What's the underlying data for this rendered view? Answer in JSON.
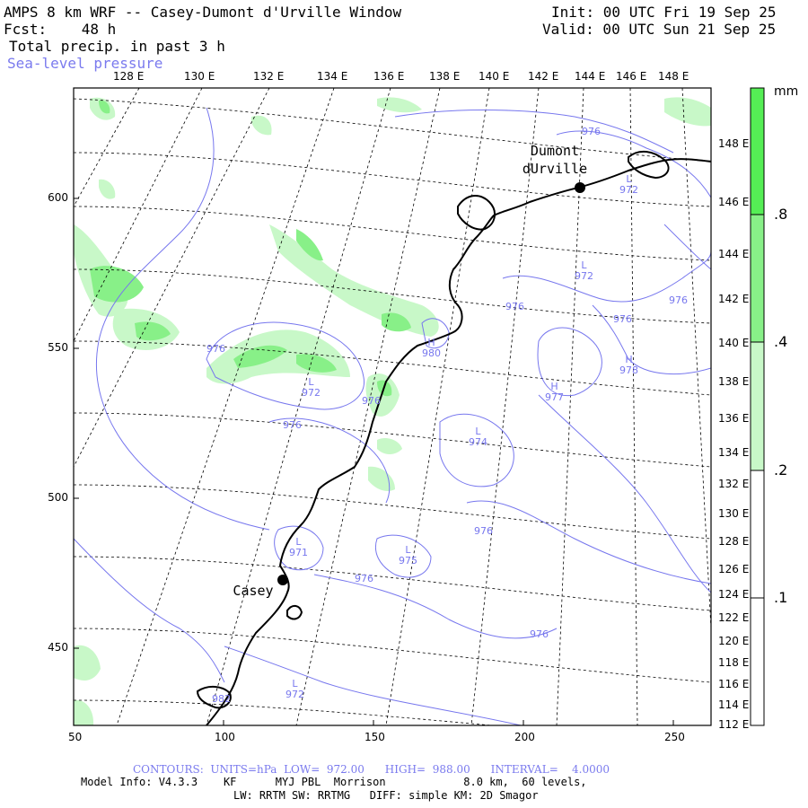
{
  "header": {
    "title": "AMPS 8 km WRF -- Casey-Dumont d'Urville Window",
    "forecast": "Fcst:    48 h",
    "field": "Total precip. in past 3 h",
    "overlay": "Sea-level pressure",
    "init": "Init: 00 UTC Fri 19 Sep 25",
    "valid": "Valid: 00 UTC Sun 21 Sep 25"
  },
  "map": {
    "x_ticks": [
      "50",
      "100",
      "150",
      "200",
      "250"
    ],
    "y_ticks": [
      "450",
      "500",
      "550",
      "600"
    ],
    "top_lon_labels": [
      "128 E",
      "130 E",
      "132 E",
      "134 E",
      "136 E",
      "138 E",
      "140 E",
      "142 E",
      "144 E",
      "146 E",
      "148 E"
    ],
    "right_lon_labels": [
      "148 E",
      "146 E",
      "144 E",
      "142 E",
      "140 E",
      "138 E",
      "136 E",
      "134 E",
      "132 E",
      "130 E",
      "128 E",
      "126 E",
      "124 E",
      "122 E",
      "120 E",
      "118 E",
      "116 E",
      "114 E",
      "112 E"
    ],
    "places": [
      {
        "name": "Dumont\ndUrville"
      },
      {
        "name": "Casey"
      }
    ],
    "pressure_labels": [
      {
        "text": "976"
      },
      {
        "text": "L\n972"
      },
      {
        "text": "L\n972"
      },
      {
        "text": "976"
      },
      {
        "text": "976"
      },
      {
        "text": "976"
      },
      {
        "text": "H\n978"
      },
      {
        "text": "H\n977"
      },
      {
        "text": "976"
      },
      {
        "text": "H\n980"
      },
      {
        "text": "976"
      },
      {
        "text": "L\n972"
      },
      {
        "text": "976"
      },
      {
        "text": "976"
      },
      {
        "text": "L\n974"
      },
      {
        "text": "976"
      },
      {
        "text": "L\n971"
      },
      {
        "text": "976"
      },
      {
        "text": "L\n975"
      },
      {
        "text": "L\n972"
      },
      {
        "text": "982"
      }
    ]
  },
  "colorbar": {
    "unit": "mm",
    "ticks": [
      ".8",
      ".4",
      ".2",
      ".1"
    ],
    "colors": [
      "#55ee55",
      "#88f088",
      "#c8f8c8",
      "#ffffff"
    ]
  },
  "footer": {
    "contours": "CONTOURS:  UNITS=hPa  LOW=  972.00      HIGH=  988.00      INTERVAL=    4.0000",
    "model_info": "Model Info: V4.3.3    KF      MYJ PBL  Morrison            8.0 km,  60 levels,",
    "physics": "LW: RRTM SW: RRTMG   DIFF: simple KM: 2D Smagor"
  }
}
